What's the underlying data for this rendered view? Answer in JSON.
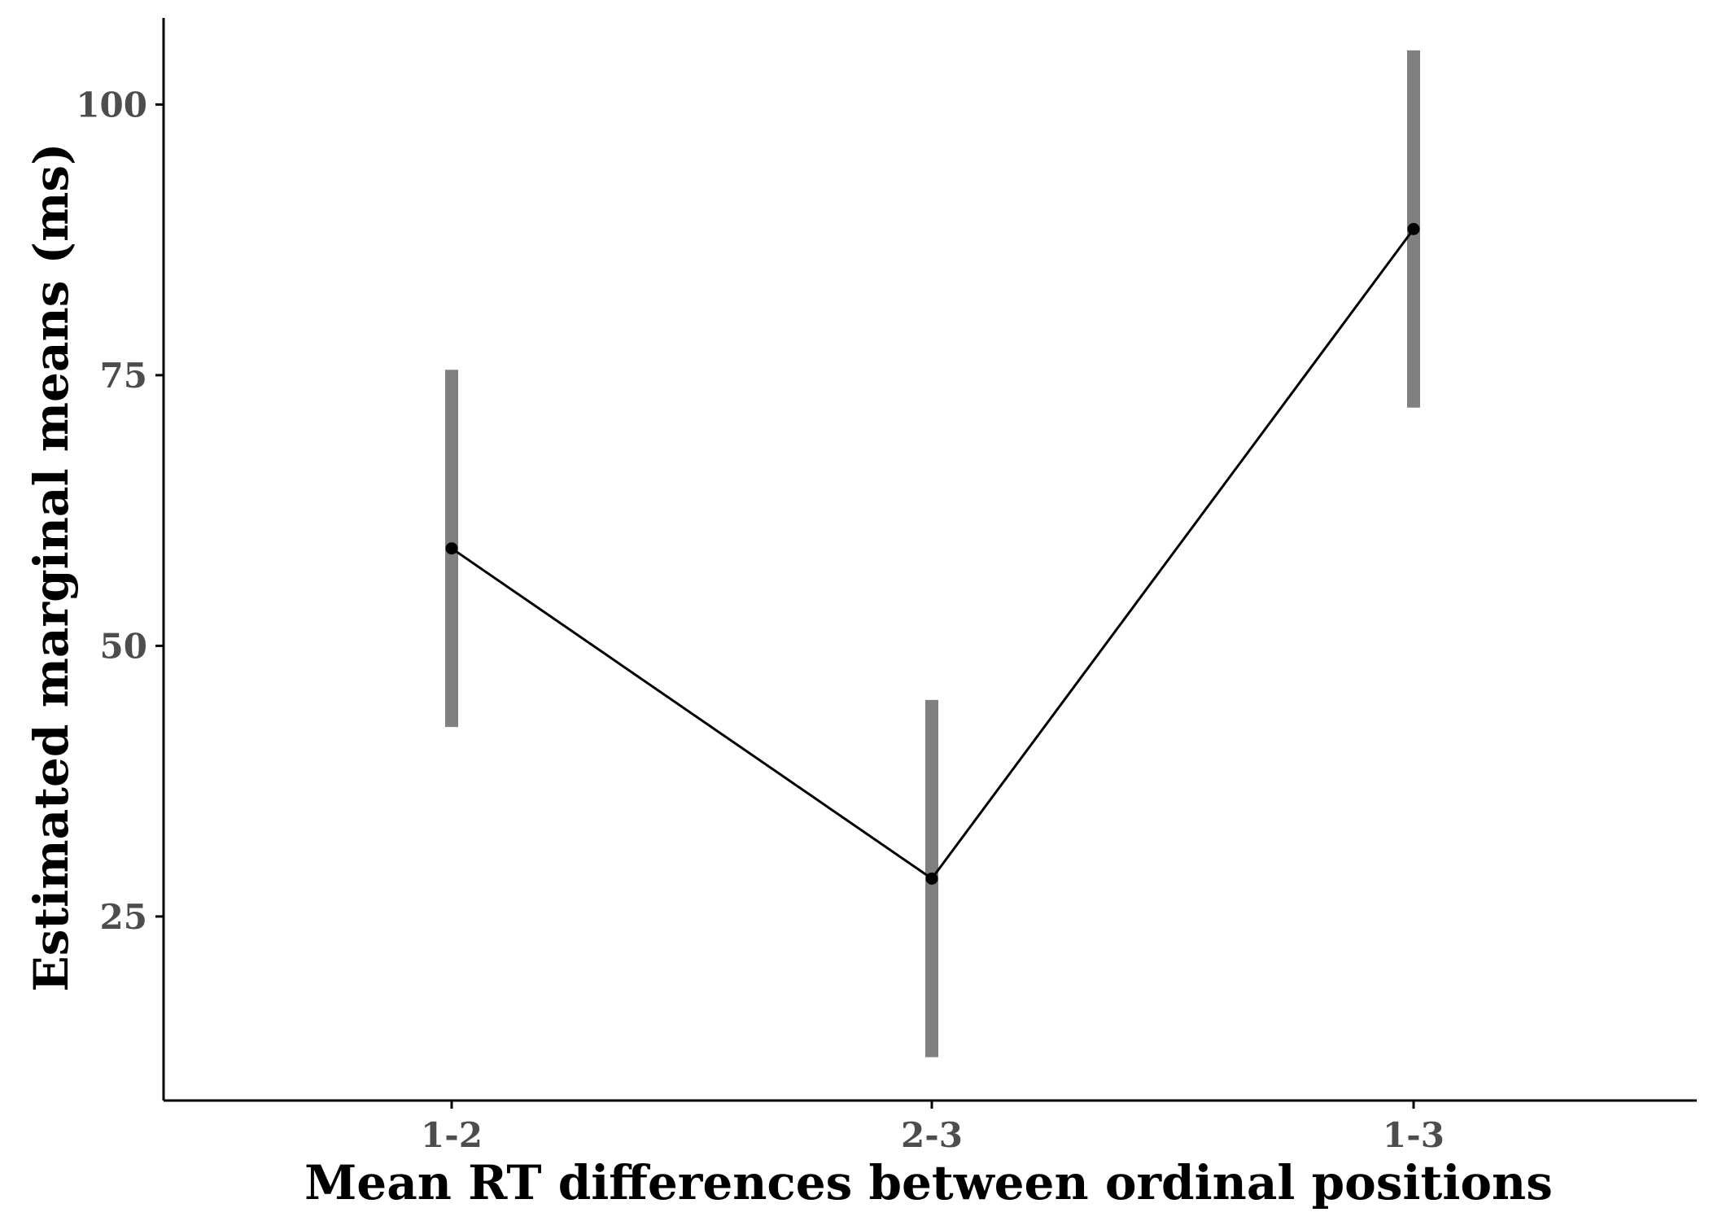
{
  "chart_data": {
    "type": "line",
    "title": "",
    "xlabel": "Mean RT differences between ordinal positions",
    "ylabel": "Estimated marginal means (ms)",
    "categories": [
      "1-2",
      "2-3",
      "1-3"
    ],
    "series": [
      {
        "values": [
          59.0,
          28.5,
          88.5
        ],
        "lower": [
          42.5,
          12.0,
          72.0
        ],
        "upper": [
          75.5,
          45.0,
          105.0
        ]
      }
    ],
    "y_ticks": [
      25,
      50,
      75,
      100
    ],
    "ylim": [
      8,
      108
    ],
    "grid": false,
    "legend": "none",
    "colors": {
      "line": "#000000",
      "point": "#000000",
      "errorbar": "#808080",
      "axis": "#000000",
      "tick_label": "#4d4d4d"
    }
  }
}
